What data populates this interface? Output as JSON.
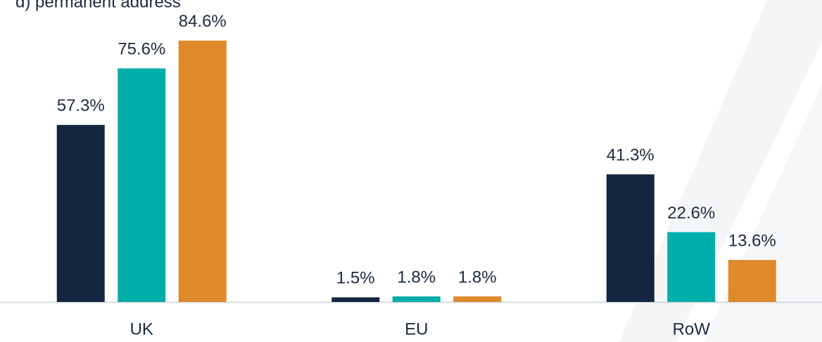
{
  "chart_data": {
    "type": "bar",
    "title": "d) permanent address",
    "categories": [
      "UK",
      "EU",
      "RoW"
    ],
    "series": [
      {
        "color": "#12263f",
        "values": [
          57.3,
          1.5,
          41.3
        ],
        "value_labels": [
          "57.3%",
          "1.5%",
          "41.3%"
        ]
      },
      {
        "color": "#00aea9",
        "values": [
          75.6,
          1.8,
          22.6
        ],
        "value_labels": [
          "75.6%",
          "1.8%",
          "22.6%"
        ]
      },
      {
        "color": "#de8a2a",
        "values": [
          84.6,
          1.8,
          13.6
        ],
        "value_labels": [
          "84.6%",
          "1.8%",
          "13.6%"
        ]
      }
    ],
    "ylim": [
      0,
      100
    ],
    "grid": false
  }
}
